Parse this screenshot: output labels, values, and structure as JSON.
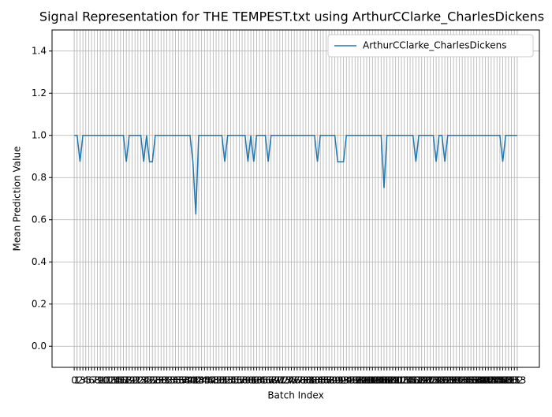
{
  "chart_data": {
    "type": "line",
    "title": "Signal Representation for THE TEMPEST.txt using ArthurCClarke_CharlesDickens",
    "x_label": "Batch Index",
    "y_label": "Mean Prediction Value",
    "x": [
      0,
      1,
      2,
      3,
      4,
      5,
      6,
      7,
      8,
      9,
      10,
      11,
      12,
      13,
      14,
      15,
      16,
      17,
      18,
      19,
      20,
      21,
      22,
      23,
      24,
      25,
      26,
      27,
      28,
      29,
      30,
      31,
      32,
      33,
      34,
      35,
      36,
      37,
      38,
      39,
      40,
      41,
      42,
      43,
      44,
      45,
      46,
      47,
      48,
      49,
      50,
      51,
      52,
      53,
      54,
      55,
      56,
      57,
      58,
      59,
      60,
      61,
      62,
      63,
      64,
      65,
      66,
      67,
      68,
      69,
      70,
      71,
      72,
      73,
      74,
      75,
      76,
      77,
      78,
      79,
      80,
      81,
      82,
      83,
      84,
      85,
      86,
      87,
      88,
      89,
      90,
      91,
      92,
      93,
      94,
      95,
      96,
      97,
      98,
      99,
      100,
      101,
      102,
      103,
      104,
      105,
      106,
      107,
      108,
      109,
      110,
      111,
      112,
      113,
      114,
      115,
      116,
      117,
      118,
      119,
      120,
      121,
      122,
      123,
      124,
      125,
      126,
      127,
      128,
      129,
      130,
      131,
      132,
      133,
      134,
      135,
      136,
      137,
      138,
      139,
      140,
      141,
      142,
      143,
      144,
      145,
      146,
      147,
      148,
      149,
      150,
      151,
      152,
      153
    ],
    "series": [
      {
        "name": "ArthurCClarke_CharlesDickens",
        "color": "#1f77b4",
        "values": [
          1,
          1,
          0.875,
          1,
          1,
          1,
          1,
          1,
          1,
          1,
          1,
          1,
          1,
          1,
          1,
          1,
          1,
          1,
          0.875,
          1,
          1,
          1,
          1,
          1,
          0.875,
          1,
          0.875,
          0.875,
          1,
          1,
          1,
          1,
          1,
          1,
          1,
          1,
          1,
          1,
          1,
          1,
          1,
          0.875,
          0.625,
          1,
          1,
          1,
          1,
          1,
          1,
          1,
          1,
          1,
          0.875,
          1,
          1,
          1,
          1,
          1,
          1,
          1,
          0.875,
          1,
          0.875,
          1,
          1,
          1,
          1,
          0.875,
          1,
          1,
          1,
          1,
          1,
          1,
          1,
          1,
          1,
          1,
          1,
          1,
          1,
          1,
          1,
          1,
          0.875,
          1,
          1,
          1,
          1,
          1,
          1,
          0.875,
          0.875,
          0.875,
          1,
          1,
          1,
          1,
          1,
          1,
          1,
          1,
          1,
          1,
          1,
          1,
          1,
          0.75,
          1,
          1,
          1,
          1,
          1,
          1,
          1,
          1,
          1,
          1,
          0.875,
          1,
          1,
          1,
          1,
          1,
          1,
          0.875,
          1,
          1,
          0.875,
          1,
          1,
          1,
          1,
          1,
          1,
          1,
          1,
          1,
          1,
          1,
          1,
          1,
          1,
          1,
          1,
          1,
          1,
          1,
          0.875,
          1,
          1,
          1,
          1,
          1
        ]
      }
    ],
    "xlim": [
      -7.65,
      160.65
    ],
    "ylim": [
      -0.1,
      1.5
    ],
    "yticks": [
      {
        "value": 0,
        "label": "0.0"
      },
      {
        "value": 0.2,
        "label": "0.2"
      },
      {
        "value": 0.4,
        "label": "0.4"
      },
      {
        "value": 0.6,
        "label": "0.6"
      },
      {
        "value": 0.8,
        "label": "0.8"
      },
      {
        "value": 1,
        "label": "1.0"
      },
      {
        "value": 1.2,
        "label": "1.2"
      },
      {
        "value": 1.4,
        "label": "1.4"
      }
    ],
    "grid": true,
    "legend": "upper right"
  }
}
